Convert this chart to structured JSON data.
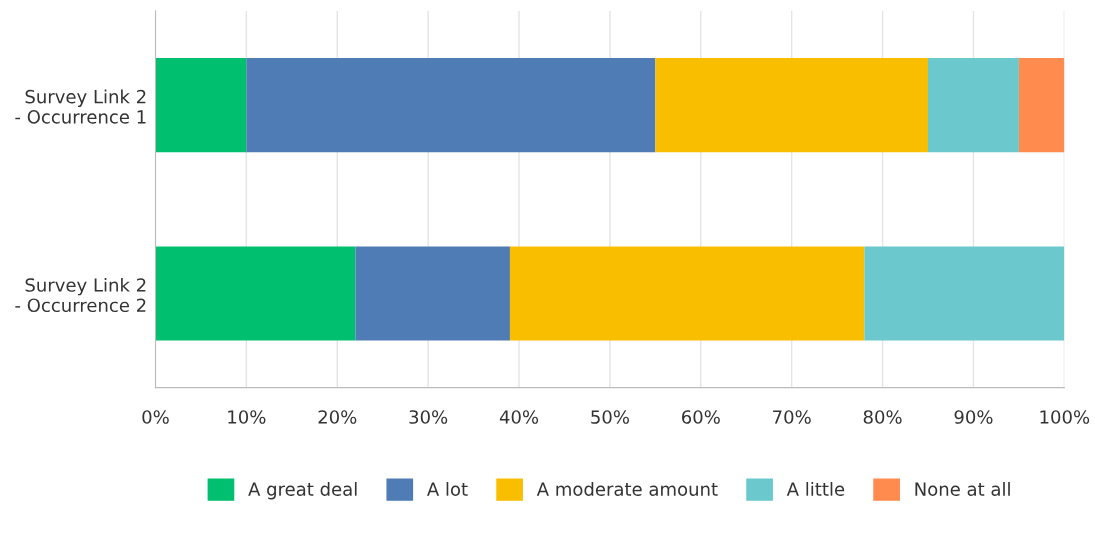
{
  "chart_data": {
    "type": "bar",
    "orientation": "horizontal",
    "stacked": true,
    "categories": [
      "Survey Link 2\n- Occurrence 1",
      "Survey Link 2\n- Occurrence 2"
    ],
    "series": [
      {
        "name": "A great deal",
        "color": "#00bf6f",
        "values": [
          10,
          22
        ]
      },
      {
        "name": "A lot",
        "color": "#507cb6",
        "values": [
          45,
          17
        ]
      },
      {
        "name": "A moderate amount",
        "color": "#f9be00",
        "values": [
          30,
          39
        ]
      },
      {
        "name": "A little",
        "color": "#6bc8cd",
        "values": [
          10,
          22
        ]
      },
      {
        "name": "None at all",
        "color": "#ff8b4f",
        "values": [
          5,
          0
        ]
      }
    ],
    "xlim": [
      0,
      100
    ],
    "xticks": [
      {
        "value": 0,
        "label": "0%"
      },
      {
        "value": 10,
        "label": "10%"
      },
      {
        "value": 20,
        "label": "20%"
      },
      {
        "value": 30,
        "label": "30%"
      },
      {
        "value": 40,
        "label": "40%"
      },
      {
        "value": 50,
        "label": "50%"
      },
      {
        "value": 60,
        "label": "60%"
      },
      {
        "value": 70,
        "label": "70%"
      },
      {
        "value": 80,
        "label": "80%"
      },
      {
        "value": 90,
        "label": "90%"
      },
      {
        "value": 100,
        "label": "100%"
      }
    ],
    "grid": "x",
    "legend": "bottom"
  }
}
